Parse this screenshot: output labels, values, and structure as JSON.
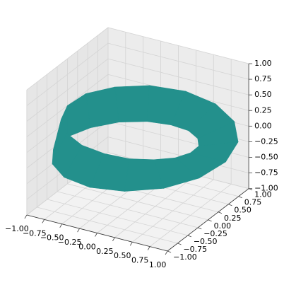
{
  "chart_data": {
    "type": "surface3d",
    "colormap": "viridis",
    "x": [
      [
        1.25,
        1.15,
        0.87,
        0.46,
        0,
        -0.44,
        -0.77,
        -0.97,
        -1,
        -0.88,
        -0.64,
        -0.33,
        0,
        0.3,
        0.54,
        0.7,
        0.75
      ],
      [
        0.75,
        0.7,
        0.54,
        0.3,
        0,
        -0.33,
        -0.64,
        -0.88,
        -1,
        -0.97,
        -0.77,
        -0.44,
        0,
        0.46,
        0.87,
        1.15,
        1.25
      ]
    ],
    "y": [
      [
        0,
        0.48,
        0.87,
        1.12,
        1.18,
        1.05,
        0.77,
        0.4,
        0,
        -0.36,
        -0.64,
        -0.8,
        -0.82,
        -0.73,
        -0.54,
        -0.29,
        0
      ],
      [
        0,
        0.29,
        0.54,
        0.73,
        0.82,
        0.8,
        0.64,
        0.36,
        0,
        -0.4,
        -0.77,
        -1.05,
        -1.18,
        -1.12,
        -0.87,
        -0.48,
        0
      ]
    ],
    "z": [
      [
        0,
        0.05,
        0.1,
        0.14,
        0.18,
        0.21,
        0.23,
        0.25,
        0.25,
        0.25,
        0.23,
        0.21,
        0.18,
        0.14,
        0.1,
        0.05,
        0
      ],
      [
        0,
        -0.05,
        -0.1,
        -0.14,
        -0.18,
        -0.21,
        -0.23,
        -0.25,
        -0.25,
        -0.25,
        -0.23,
        -0.21,
        -0.18,
        -0.14,
        -0.1,
        -0.05,
        0
      ]
    ],
    "xlim": [
      -1,
      1
    ],
    "ylim": [
      -1,
      1
    ],
    "zlim": [
      -1,
      1
    ],
    "xticks": [
      {
        "value": -1,
        "label": "−1.00"
      },
      {
        "value": -0.75,
        "label": "−0.75"
      },
      {
        "value": -0.5,
        "label": "−0.50"
      },
      {
        "value": -0.25,
        "label": "−0.25"
      },
      {
        "value": 0,
        "label": "0.00"
      },
      {
        "value": 0.25,
        "label": "0.25"
      },
      {
        "value": 0.5,
        "label": "0.50"
      },
      {
        "value": 0.75,
        "label": "0.75"
      },
      {
        "value": 1,
        "label": "1.00"
      }
    ],
    "yticks": [
      {
        "value": -1,
        "label": "−1.00"
      },
      {
        "value": -0.75,
        "label": "−0.75"
      },
      {
        "value": -0.5,
        "label": "−0.50"
      },
      {
        "value": -0.25,
        "label": "−0.25"
      },
      {
        "value": 0,
        "label": "0.00"
      },
      {
        "value": 0.25,
        "label": "0.25"
      },
      {
        "value": 0.5,
        "label": "0.50"
      },
      {
        "value": 0.75,
        "label": "0.75"
      },
      {
        "value": 1,
        "label": "1.00"
      }
    ],
    "zticks": [
      {
        "value": -1,
        "label": "−1.00"
      },
      {
        "value": -0.75,
        "label": "−0.75"
      },
      {
        "value": -0.5,
        "label": "−0.50"
      },
      {
        "value": -0.25,
        "label": "−0.25"
      },
      {
        "value": 0,
        "label": "0.00"
      },
      {
        "value": 0.25,
        "label": "0.25"
      },
      {
        "value": 0.5,
        "label": "0.50"
      },
      {
        "value": 0.75,
        "label": "0.75"
      },
      {
        "value": 1,
        "label": "1.00"
      }
    ]
  }
}
